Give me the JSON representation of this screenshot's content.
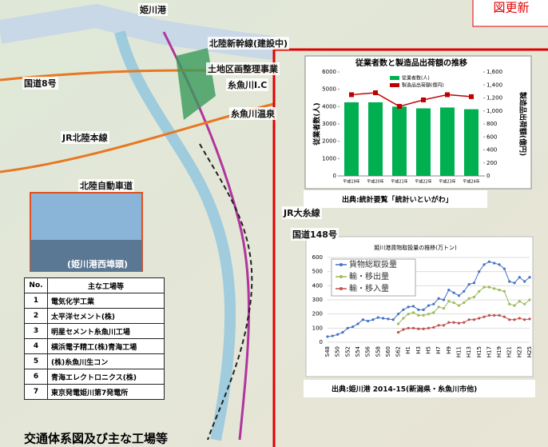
{
  "header": {
    "title": "交通体系図及び主な工場等",
    "stamp": "図更新"
  },
  "map": {
    "labels": [
      "姫川港",
      "北陸新幹線(建設中)",
      "土地区画整理事業",
      "国道8号",
      "糸魚川I.C",
      "JR北陸本線",
      "糸魚川温泉",
      "北陸自動車道",
      "JR大糸線",
      "国道148号"
    ],
    "photo_caption": "(姫川港西埠頭)"
  },
  "table": {
    "header": [
      "No.",
      "主な工場等"
    ],
    "rows": [
      [
        "1",
        "電気化学工業"
      ],
      [
        "2",
        "太平洋セメント(株)"
      ],
      [
        "3",
        "明星セメント糸魚川工場"
      ],
      [
        "4",
        "横浜電子精工(株)青海工場"
      ],
      [
        "5",
        "(株)糸魚川生コン"
      ],
      [
        "6",
        "青海エレクトロニクス(株)"
      ],
      [
        "7",
        "東京発電姫川第7発電所"
      ]
    ]
  },
  "chart_data": [
    {
      "type": "bar",
      "title": "従業者数と製造品出荷額の推移",
      "categories": [
        "平成19年",
        "平成20年",
        "平成21年",
        "平成22年",
        "平成23年",
        "平成24年"
      ],
      "series": [
        {
          "name": "従業者数(人)",
          "color": "#00b050",
          "values": [
            4250,
            4250,
            4000,
            3900,
            3950,
            3850
          ]
        },
        {
          "name": "製造品出荷額(億円)",
          "color": "#c00000",
          "type": "line",
          "axis": "y2",
          "values": [
            1250,
            1280,
            1070,
            1170,
            1250,
            1220
          ]
        }
      ],
      "ylabel": "従業者数(人)",
      "y2label": "製造品出荷額(億円)",
      "ylim": [
        0,
        6000
      ],
      "yticks": [
        0,
        1000,
        2000,
        3000,
        4000,
        5000,
        6000
      ],
      "y2lim": [
        0,
        1600
      ],
      "y2ticks": [
        0,
        200,
        400,
        600,
        800,
        {
          "value": 1000,
          "label": "1,000"
        },
        {
          "value": 1200,
          "label": "1,200"
        },
        {
          "value": 1400,
          "label": "1,400"
        },
        {
          "value": 1600,
          "label": "1,600"
        }
      ],
      "source": "出典:統計要覧「統計いといがわ」"
    },
    {
      "type": "line",
      "title": "姫川港貨物取扱量の推移(万トン)",
      "categories": [
        "S48",
        null,
        "S50",
        null,
        "S52",
        null,
        "S54",
        null,
        "S56",
        null,
        "S58",
        null,
        "S60",
        null,
        "S62",
        null,
        "H1",
        null,
        "H3",
        null,
        "H5",
        null,
        "H7",
        null,
        "H9",
        null,
        "H11",
        null,
        "H13",
        null,
        "H15",
        null,
        "H17",
        null,
        "H19",
        null,
        "H21",
        null,
        "H23",
        null,
        "H25"
      ],
      "series": [
        {
          "name": "貨物総取扱量",
          "color": "#4472c4",
          "values": [
            40,
            45,
            55,
            70,
            100,
            110,
            130,
            160,
            150,
            160,
            175,
            170,
            165,
            160,
            200,
            230,
            250,
            255,
            230,
            230,
            260,
            270,
            310,
            300,
            370,
            350,
            330,
            360,
            410,
            420,
            500,
            550,
            570,
            560,
            550,
            520,
            430,
            420,
            460,
            430,
            460
          ]
        },
        {
          "name": "輸・移出量",
          "color": "#9bbb59",
          "values": [
            null,
            null,
            null,
            null,
            null,
            null,
            null,
            null,
            null,
            null,
            null,
            null,
            null,
            null,
            130,
            170,
            200,
            210,
            190,
            190,
            200,
            210,
            250,
            240,
            290,
            280,
            260,
            280,
            310,
            320,
            360,
            390,
            390,
            380,
            370,
            360,
            270,
            260,
            290,
            270,
            300
          ]
        },
        {
          "name": "輸・移入量",
          "color": "#c0504d",
          "values": [
            null,
            null,
            null,
            null,
            null,
            null,
            null,
            null,
            null,
            null,
            null,
            null,
            null,
            null,
            70,
            90,
            100,
            100,
            95,
            95,
            100,
            105,
            120,
            120,
            140,
            140,
            135,
            140,
            160,
            160,
            170,
            180,
            190,
            190,
            190,
            180,
            160,
            160,
            170,
            160,
            165
          ]
        }
      ],
      "ylim": [
        0,
        600
      ],
      "yticks": [
        0,
        100,
        200,
        300,
        400,
        500,
        600
      ],
      "grid": true,
      "source": "出典:姫川港 2014-15(新潟県・糸魚川市他)"
    }
  ]
}
